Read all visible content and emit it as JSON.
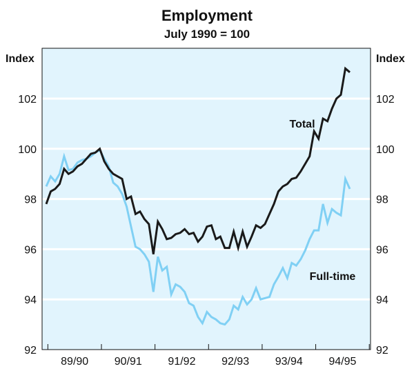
{
  "chart_data": {
    "type": "line",
    "title": "Employment",
    "subtitle": "July 1990 = 100",
    "ylabel_left": "Index",
    "ylabel_right": "Index",
    "ylim": [
      92,
      104
    ],
    "yticks": [
      92,
      94,
      96,
      98,
      100,
      102
    ],
    "x_tick_labels": [
      "89/90",
      "90/91",
      "91/92",
      "92/93",
      "93/94",
      "94/95"
    ],
    "x_start": "1989-07",
    "x_frequency": "monthly",
    "grid": true,
    "colors": {
      "background": "#e1f4fd",
      "grid": "#ffffff",
      "total": "#1a1a1a",
      "fulltime": "#80d0f4"
    },
    "series": [
      {
        "name": "Total",
        "values": [
          97.8,
          98.3,
          98.4,
          98.6,
          99.2,
          99.0,
          99.1,
          99.3,
          99.4,
          99.6,
          99.8,
          99.85,
          100.0,
          99.5,
          99.2,
          99.0,
          98.9,
          98.8,
          98.0,
          98.1,
          97.4,
          97.5,
          97.2,
          97.0,
          95.8,
          97.1,
          96.8,
          96.4,
          96.45,
          96.6,
          96.65,
          96.8,
          96.6,
          96.65,
          96.3,
          96.5,
          96.9,
          96.95,
          96.4,
          96.5,
          96.05,
          96.05,
          96.7,
          96.05,
          96.7,
          96.1,
          96.5,
          96.95,
          96.85,
          97.0,
          97.4,
          97.8,
          98.3,
          98.5,
          98.6,
          98.8,
          98.85,
          99.1,
          99.4,
          99.7,
          100.7,
          100.4,
          101.2,
          101.1,
          101.6,
          102.0,
          102.15,
          103.2,
          103.05
        ]
      },
      {
        "name": "Full-time",
        "values": [
          98.5,
          98.9,
          98.7,
          99.0,
          99.7,
          99.15,
          99.2,
          99.45,
          99.55,
          99.6,
          99.7,
          99.85,
          99.95,
          99.6,
          99.3,
          98.65,
          98.5,
          98.2,
          97.7,
          96.9,
          96.1,
          96.0,
          95.8,
          95.5,
          94.3,
          95.7,
          95.15,
          95.3,
          94.2,
          94.6,
          94.5,
          94.3,
          93.85,
          93.75,
          93.3,
          93.05,
          93.5,
          93.3,
          93.2,
          93.05,
          93.0,
          93.2,
          93.75,
          93.6,
          94.1,
          93.8,
          94.0,
          94.45,
          94.0,
          94.05,
          94.1,
          94.6,
          94.9,
          95.25,
          94.85,
          95.45,
          95.35,
          95.6,
          95.95,
          96.4,
          96.75,
          96.75,
          97.8,
          97.05,
          97.6,
          97.45,
          97.35,
          98.8,
          98.4
        ]
      }
    ]
  }
}
